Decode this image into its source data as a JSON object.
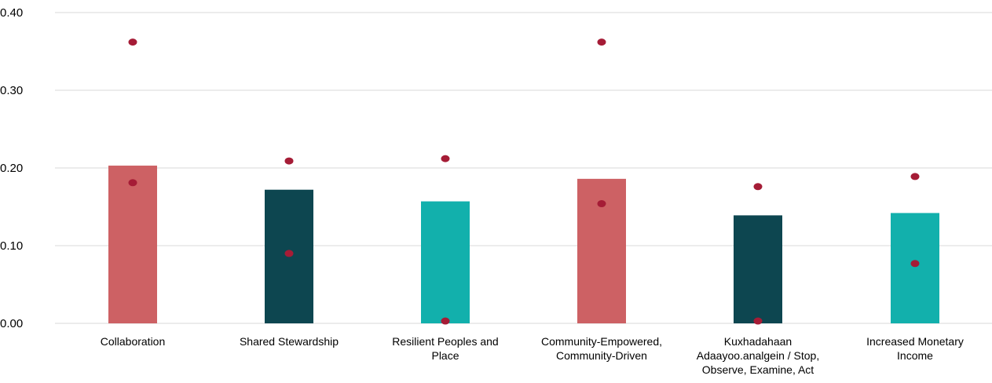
{
  "chart_data": {
    "type": "bar",
    "title": "",
    "xlabel": "",
    "ylabel": "",
    "ylim": [
      0,
      0.4
    ],
    "yticks": [
      "0.00",
      "0.10",
      "0.20",
      "0.30",
      "0.40"
    ],
    "grid": true,
    "legend": "none",
    "categories": [
      [
        "Collaboration"
      ],
      [
        "Shared Stewardship"
      ],
      [
        "Resilient Peoples and",
        "Place"
      ],
      [
        "Community-Empowered,",
        "Community-Driven"
      ],
      [
        "Kuxhadahaan",
        "Adaayoo.analgein / Stop,",
        "Observe, Examine, Act"
      ],
      [
        "Increased Monetary",
        "Income"
      ]
    ],
    "bar_values": [
      0.203,
      0.172,
      0.157,
      0.186,
      0.139,
      0.142
    ],
    "bar_colors": [
      "#cd6164",
      "#0d4650",
      "#12b0ac",
      "#cd6164",
      "#0d4650",
      "#12b0ac"
    ],
    "point_series": [
      {
        "values": [
          0.362,
          0.209,
          0.212,
          0.362,
          0.176,
          0.189
        ]
      },
      {
        "values": [
          0.181,
          0.09,
          0.003,
          0.154,
          0.003,
          0.077
        ]
      }
    ],
    "point_color": "#a51c36",
    "grid_color": "#d9d9d9"
  }
}
